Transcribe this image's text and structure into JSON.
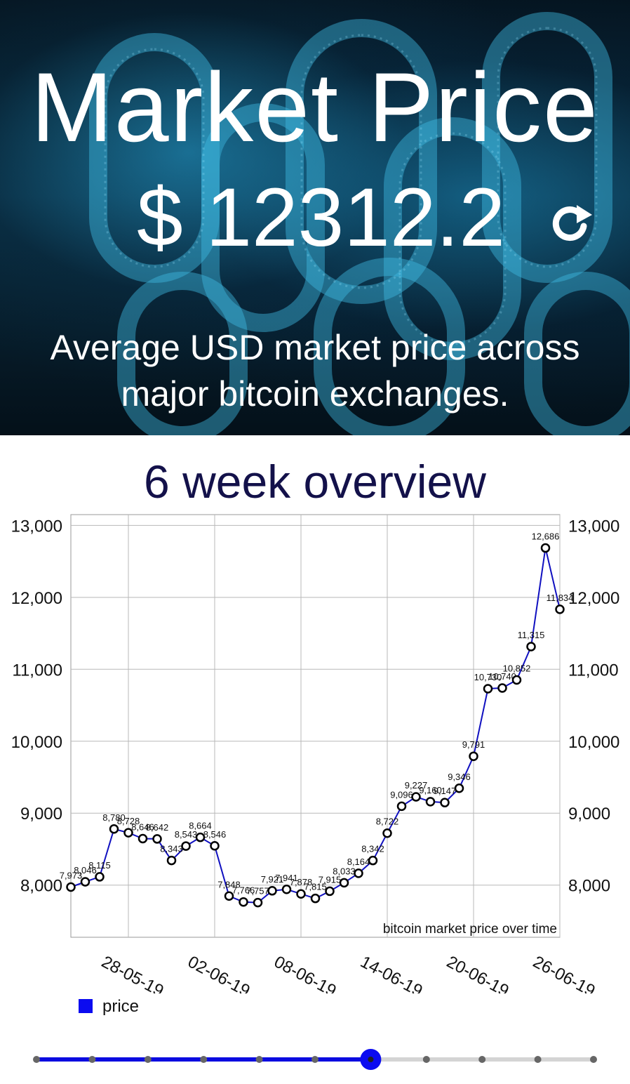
{
  "header": {
    "title": "Market Price",
    "price": "$ 12312.2",
    "description_line1": "Average USD market price across",
    "description_line2": "major bitcoin exchanges.",
    "refresh_icon": "refresh-icon"
  },
  "overview": {
    "title": "6 week overview"
  },
  "chart_data": {
    "type": "line",
    "title": "",
    "annotation": "bitcoin market price over time",
    "legend": {
      "label": "price",
      "placement": "bottom-left",
      "color": "#0b0bf0"
    },
    "series": [
      {
        "name": "price",
        "color": "#1010c0",
        "values": [
          7973,
          8046,
          8115,
          8780,
          8728,
          8646,
          8642,
          8343,
          8543,
          8664,
          8546,
          7848,
          7766,
          7757,
          7921,
          7941,
          7878,
          7815,
          7915,
          8033,
          8164,
          8342,
          8722,
          9096,
          9227,
          9160,
          9147,
          9346,
          9791,
          10730,
          10740,
          10852,
          11315,
          12686,
          11834
        ],
        "value_labels": [
          "7,973",
          "8,046",
          "8,115",
          "8,780",
          "8,728",
          "8,646",
          "8,642",
          "8,343",
          "8,543",
          "8,664",
          "8,546",
          "7,848",
          "7,766",
          "7,757",
          "7,921",
          "7,941",
          "7,878",
          "7,815",
          "7,915",
          "8,033",
          "8,164",
          "8,342",
          "8,722",
          "9,096",
          "9,227",
          "9,160",
          "9,147",
          "9,346",
          "9,791",
          "10,730",
          "10,740",
          "10,852",
          "11,315",
          "12,686",
          "11,834"
        ]
      }
    ],
    "x_tick_labels": [
      "28-05-19",
      "02-06-19",
      "08-06-19",
      "14-06-19",
      "20-06-19",
      "26-06-19"
    ],
    "x_tick_indices": [
      4,
      10,
      16,
      22,
      28,
      34
    ],
    "y_ticks": [
      8000,
      9000,
      10000,
      11000,
      12000,
      13000
    ],
    "y_tick_labels": [
      "8,000",
      "9,000",
      "10,000",
      "11,000",
      "12,000",
      "13,000"
    ],
    "ylim": [
      7275,
      13150
    ],
    "grid": true,
    "axes": "left-and-right"
  },
  "pager": {
    "total_steps": 11,
    "current_step": 7
  }
}
